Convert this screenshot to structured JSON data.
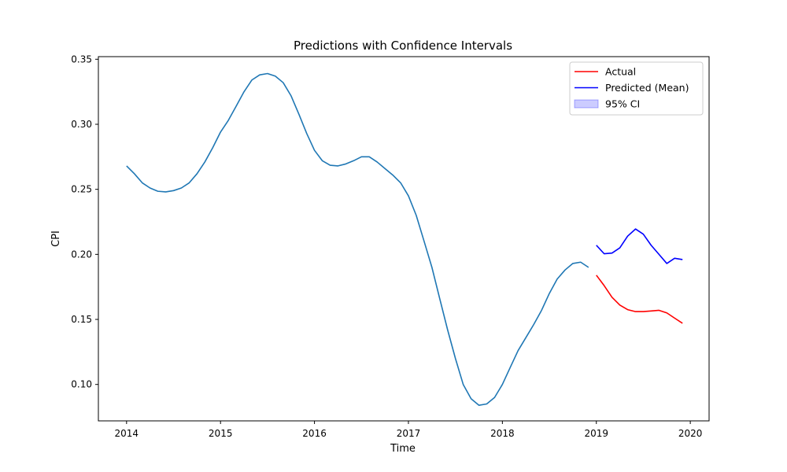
{
  "chart_data": {
    "type": "line",
    "title": "Predictions with Confidence Intervals",
    "xlabel": "Time",
    "ylabel": "CPI",
    "xlim": [
      2013.7,
      2020.2
    ],
    "ylim": [
      0.072,
      0.352
    ],
    "xticks": [
      2014,
      2015,
      2016,
      2017,
      2018,
      2019,
      2020
    ],
    "xtick_labels": [
      "2014",
      "2015",
      "2016",
      "2017",
      "2018",
      "2019",
      "2020"
    ],
    "yticks": [
      0.1,
      0.15,
      0.2,
      0.25,
      0.3,
      0.35
    ],
    "ytick_labels": [
      "0.10",
      "0.15",
      "0.20",
      "0.25",
      "0.30",
      "0.35"
    ],
    "grid": false,
    "legend_position": "top-right",
    "series": [
      {
        "key": "history",
        "color": "#1f77b4",
        "x": [
          2014.0,
          2014.083,
          2014.167,
          2014.25,
          2014.333,
          2014.417,
          2014.5,
          2014.583,
          2014.667,
          2014.75,
          2014.833,
          2014.917,
          2015.0,
          2015.083,
          2015.167,
          2015.25,
          2015.333,
          2015.417,
          2015.5,
          2015.583,
          2015.667,
          2015.75,
          2015.833,
          2015.917,
          2016.0,
          2016.083,
          2016.167,
          2016.25,
          2016.333,
          2016.417,
          2016.5,
          2016.583,
          2016.667,
          2016.75,
          2016.833,
          2016.917,
          2017.0,
          2017.083,
          2017.167,
          2017.25,
          2017.333,
          2017.417,
          2017.5,
          2017.583,
          2017.667,
          2017.75,
          2017.833,
          2017.917,
          2018.0,
          2018.083,
          2018.167,
          2018.25,
          2018.333,
          2018.417,
          2018.5,
          2018.583,
          2018.667,
          2018.75,
          2018.833,
          2018.917
        ],
        "values": [
          0.268,
          0.262,
          0.255,
          0.251,
          0.2485,
          0.248,
          0.249,
          0.251,
          0.255,
          0.262,
          0.271,
          0.282,
          0.294,
          0.303,
          0.314,
          0.325,
          0.334,
          0.338,
          0.339,
          0.337,
          0.332,
          0.322,
          0.308,
          0.293,
          0.28,
          0.272,
          0.2685,
          0.268,
          0.2695,
          0.272,
          0.275,
          0.275,
          0.271,
          0.266,
          0.261,
          0.255,
          0.245,
          0.23,
          0.21,
          0.19,
          0.166,
          0.142,
          0.12,
          0.1,
          0.089,
          0.084,
          0.085,
          0.09,
          0.1,
          0.113,
          0.126,
          0.136,
          0.146,
          0.157,
          0.17,
          0.181,
          0.188,
          0.193,
          0.194,
          0.19
        ]
      },
      {
        "key": "actual",
        "name": "Actual",
        "color": "#ff0000",
        "x": [
          2019.0,
          2019.083,
          2019.167,
          2019.25,
          2019.333,
          2019.417,
          2019.5,
          2019.583,
          2019.667,
          2019.75,
          2019.833,
          2019.917
        ],
        "values": [
          0.184,
          0.176,
          0.167,
          0.161,
          0.1575,
          0.156,
          0.156,
          0.1565,
          0.157,
          0.155,
          0.151,
          0.147
        ]
      },
      {
        "key": "predicted",
        "name": "Predicted (Mean)",
        "color": "#0000ff",
        "x": [
          2019.0,
          2019.083,
          2019.167,
          2019.25,
          2019.333,
          2019.417,
          2019.5,
          2019.583,
          2019.667,
          2019.75,
          2019.833,
          2019.917
        ],
        "values": [
          0.207,
          0.2005,
          0.201,
          0.205,
          0.214,
          0.2195,
          0.2155,
          0.207,
          0.2,
          0.193,
          0.197,
          0.196
        ]
      }
    ],
    "legend": [
      {
        "label": "Actual",
        "color": "#ff0000",
        "kind": "line"
      },
      {
        "label": "Predicted (Mean)",
        "color": "#0000ff",
        "kind": "line"
      },
      {
        "label": "95% CI",
        "color": "#0000ff",
        "kind": "patch"
      }
    ]
  }
}
